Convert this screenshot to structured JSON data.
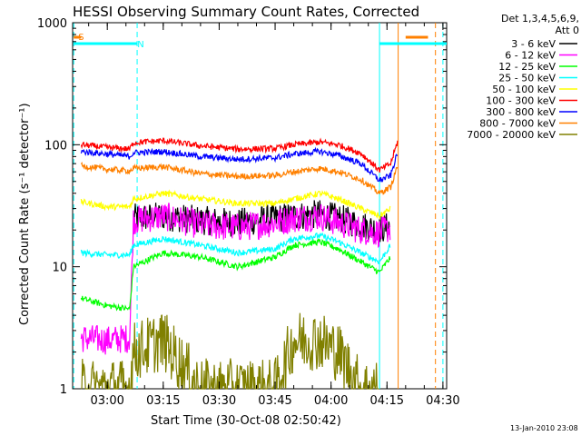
{
  "chart_data": {
    "type": "line",
    "title": "HESSI Observing Summary Count Rates, Corrected",
    "xlabel": "Start Time (30-Oct-08 02:50:42)",
    "ylabel": "Corrected Count Rate (s⁻¹ detector⁻¹)",
    "yscale": "log",
    "ylim": [
      1,
      1000
    ],
    "xlim": [
      "02:50:42",
      "04:31:00"
    ],
    "x_ticks": [
      "03:00",
      "03:15",
      "03:30",
      "03:45",
      "04:00",
      "04:15",
      "04:30"
    ],
    "y_ticks": [
      "1",
      "10",
      "100",
      "1000"
    ],
    "legend_header": [
      "Det 1,3,4,5,6,9,",
      "Att 0"
    ],
    "legend_position": "right",
    "footer": "13-Jan-2010 23:08",
    "flags": [
      {
        "label": "S",
        "color": "#ff8000",
        "from": "02:51",
        "to": "02:53"
      },
      {
        "label": "N",
        "color": "#00ffff",
        "from": "02:51",
        "to": "03:08"
      },
      {
        "label": "",
        "color": "#00ffff",
        "from": "04:13",
        "to": "04:31"
      },
      {
        "label": "",
        "color": "#ff8000",
        "from": "04:20",
        "to": "04:26"
      }
    ],
    "vlines": [
      {
        "time": "02:51",
        "color": "#00ffff",
        "style": "dashed"
      },
      {
        "time": "03:08",
        "color": "#00ffff",
        "style": "dashed"
      },
      {
        "time": "04:13",
        "color": "#00ffff",
        "style": "solid"
      },
      {
        "time": "04:18",
        "color": "#ff8000",
        "style": "solid"
      },
      {
        "time": "04:28",
        "color": "#ff8000",
        "style": "dashed"
      },
      {
        "time": "04:30",
        "color": "#00ffff",
        "style": "dashed"
      }
    ],
    "x": [
      "02:53",
      "03:00",
      "03:06",
      "03:07",
      "03:15",
      "03:25",
      "03:35",
      "03:45",
      "03:50",
      "03:57",
      "04:02",
      "04:08",
      "04:13",
      "04:16",
      "04:18"
    ],
    "series": [
      {
        "name": "3 - 6 keV",
        "color": "#000000",
        "values": [
          null,
          null,
          null,
          25,
          26,
          24,
          23,
          25,
          26,
          27,
          25,
          22,
          20,
          22,
          null
        ]
      },
      {
        "name": "6 - 12 keV",
        "color": "#ff00ff",
        "values": [
          2.6,
          2.5,
          2.6,
          24,
          26,
          22,
          21,
          23,
          25,
          26,
          23,
          20,
          19,
          21,
          null
        ]
      },
      {
        "name": "12 - 25 keV",
        "color": "#00ff00",
        "values": [
          5.5,
          4.8,
          4.5,
          10,
          13,
          12,
          10,
          12,
          15,
          16,
          14,
          11,
          9,
          12,
          null
        ]
      },
      {
        "name": "25 - 50 keV",
        "color": "#00ffff",
        "values": [
          13,
          12.5,
          12.5,
          15,
          17,
          15,
          13,
          14,
          17,
          18,
          16,
          13,
          11,
          15,
          null
        ]
      },
      {
        "name": "50 - 100 keV",
        "color": "#ffff00",
        "values": [
          34,
          31,
          31,
          36,
          40,
          36,
          33,
          33,
          36,
          40,
          36,
          30,
          26,
          30,
          null
        ]
      },
      {
        "name": "100 - 300 keV",
        "color": "#ff0000",
        "values": [
          100,
          95,
          92,
          104,
          108,
          98,
          92,
          93,
          100,
          105,
          100,
          85,
          62,
          70,
          110
        ]
      },
      {
        "name": "300 - 800 keV",
        "color": "#0000ff",
        "values": [
          88,
          84,
          80,
          86,
          88,
          80,
          76,
          78,
          84,
          88,
          82,
          70,
          51,
          56,
          90
        ]
      },
      {
        "name": "800 - 7000 keV",
        "color": "#ff8000",
        "values": [
          67,
          63,
          61,
          64,
          66,
          58,
          55,
          56,
          60,
          64,
          60,
          52,
          40,
          45,
          70
        ]
      },
      {
        "name": "7000 - 20000 keV",
        "color": "#808000",
        "values": [
          1,
          1,
          1,
          2,
          2.5,
          1,
          1,
          1,
          2.5,
          2.5,
          2,
          1,
          1,
          null,
          null
        ]
      }
    ]
  }
}
